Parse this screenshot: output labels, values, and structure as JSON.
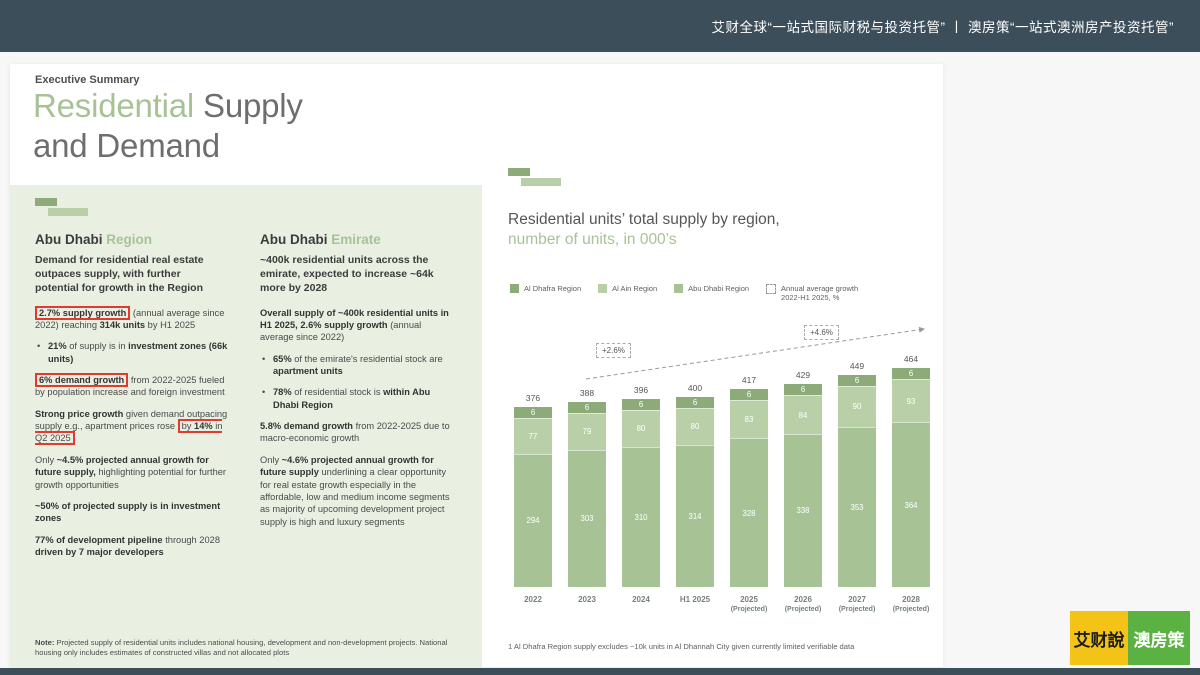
{
  "header": {
    "title": "艾财全球“一站式国际财税与投资托管”  丨  澳房策“一站式澳洲房产投资托管”"
  },
  "slide": {
    "kicker": "Executive Summary",
    "title": {
      "accent": "Residential",
      "rest": "Supply",
      "line2": "and Demand"
    },
    "left_panel": {
      "columns": [
        {
          "heading": {
            "bold": "Abu Dhabi",
            "accent": "Region"
          },
          "intro": "Demand for residential real estate outpaces supply, with further potential for growth in the Region",
          "paragraphs": [
            {
              "bullet": false,
              "text": "[[**2.7% supply growth**]] (annual average since 2022) reaching **314k units** by H1 2025"
            },
            {
              "bullet": true,
              "text": "**21%** of supply is in **investment zones (66k units)**"
            },
            {
              "bullet": false,
              "text": "[[**6% demand growth**]] from 2022-2025 fueled by population increase and foreign investment"
            },
            {
              "bullet": false,
              "text": "**Strong price growth** given demand outpacing supply e.g., apartment prices rose [[by **14%** in Q2 2025]]"
            },
            {
              "bullet": false,
              "text": "Only **~4.5% projected annual growth for future supply,** highlighting potential for further growth opportunities"
            },
            {
              "bullet": false,
              "text": "**~50% of projected supply is in investment zones**"
            },
            {
              "bullet": false,
              "text": "**77% of development pipeline** through 2028 **driven by 7 major developers**"
            }
          ]
        },
        {
          "heading": {
            "bold": "Abu Dhabi",
            "accent": "Emirate"
          },
          "intro": "~400k residential units across the emirate, expected to increase ~64k more by 2028",
          "paragraphs": [
            {
              "bullet": false,
              "text": "**Overall supply of ~400k residential units in H1 2025, 2.6% supply growth** (annual average since 2022)"
            },
            {
              "bullet": true,
              "text": "**65%** of the emirate's residential stock are **apartment units**"
            },
            {
              "bullet": true,
              "text": "**78%** of residential stock is **within Abu Dhabi Region**"
            },
            {
              "bullet": false,
              "text": "**5.8% demand growth** from 2022-2025 due to macro-economic growth"
            },
            {
              "bullet": false,
              "text": "Only **~4.6% projected annual growth for future supply** underlining a clear opportunity for real estate growth especially in the affordable, low and medium income segments as majority of upcoming development project supply is high and luxury segments"
            }
          ]
        }
      ],
      "note": "**Note:** Projected supply of residential units includes national housing, development and non-development projects. National housing only includes estimates of constructed villas and not allocated plots"
    }
  },
  "chart_data": {
    "type": "bar",
    "stacked": true,
    "title": "Residential units’ total supply by region,",
    "subtitle": "number of units, in 000’s",
    "categories": [
      "2022",
      "2023",
      "2024",
      "H1 2025",
      "2025",
      "2026",
      "2027",
      "2028"
    ],
    "category_subs": [
      "",
      "",
      "",
      "",
      "(Projected)",
      "(Projected)",
      "(Projected)",
      "(Projected)"
    ],
    "series": [
      {
        "name": "Abu Dhabi Region",
        "color": "#a7c396",
        "values": [
          294,
          303,
          310,
          314,
          328,
          338,
          353,
          364
        ]
      },
      {
        "name": "Al Ain Region",
        "color": "#b9cfa8",
        "values": [
          77,
          79,
          80,
          80,
          83,
          84,
          90,
          93
        ]
      },
      {
        "name": "Al Dhafra Region",
        "color": "#8cab79",
        "values": [
          6,
          6,
          6,
          6,
          6,
          6,
          6,
          6
        ]
      }
    ],
    "totals": [
      376,
      388,
      396,
      400,
      417,
      429,
      449,
      464
    ],
    "legend": [
      {
        "name": "Al Dhafra Region",
        "color": "#8cab79"
      },
      {
        "name": "Al Ain Region",
        "color": "#b9cfa8"
      },
      {
        "name": "Abu Dhabi Region",
        "color": "#a7c396"
      },
      {
        "name": "Annual average growth 2022-H1 2025, %",
        "icon": "dashed-box"
      }
    ],
    "growth_annotations": [
      "+2.6%",
      "+4.6%"
    ],
    "ylim": [
      0,
      464
    ],
    "footnote": "1 Al Dhafra Region supply excludes ~10k units in Al Dhannah City given currently limited verifiable data"
  },
  "logos": {
    "left": {
      "text": "艾财說",
      "bg": "#f3c317",
      "fg": "#1d1d1d"
    },
    "right": {
      "text": "澳房策",
      "bg": "#5cb143",
      "fg": "#ffffff"
    }
  },
  "colors": {
    "accent_green": "#a7c396",
    "dark_green": "#8cab79",
    "panel_green": "#e9f0e2",
    "highlight_red": "#e23b2e",
    "header_bg": "#3d4e5b"
  }
}
